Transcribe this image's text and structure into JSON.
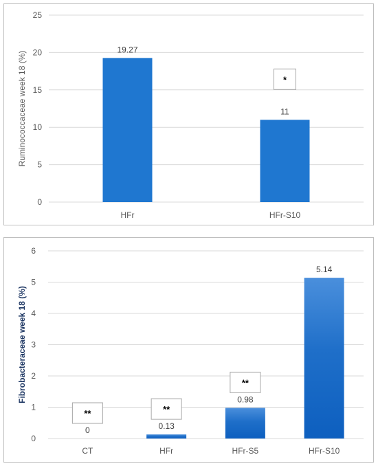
{
  "chart_data": [
    {
      "type": "bar",
      "categories": [
        "HFr",
        "HFr-S10"
      ],
      "values": [
        19.27,
        11
      ],
      "data_labels": [
        "19.27",
        "11"
      ],
      "ylabel": "Ruminococcaceae week 18 (%)",
      "ylim": [
        0,
        25
      ],
      "yticks": [
        0,
        5,
        10,
        15,
        20,
        25
      ],
      "grid": true,
      "bar_color": "#1f77d0",
      "significance": [
        null,
        "*"
      ]
    },
    {
      "type": "bar",
      "categories": [
        "CT",
        "HFr",
        "HFr-S5",
        "HFr-S10"
      ],
      "values": [
        0,
        0.13,
        0.98,
        5.14
      ],
      "data_labels": [
        "0",
        "0.13",
        "0.98",
        "5.14"
      ],
      "ylabel": "Fibrobacteraceae week 18 (%)",
      "ylim": [
        0,
        6
      ],
      "yticks": [
        0,
        1,
        2,
        3,
        4,
        5,
        6
      ],
      "grid": true,
      "bar_color": "#1f6fc9",
      "significance": [
        "**",
        "**",
        "**",
        null
      ]
    }
  ]
}
